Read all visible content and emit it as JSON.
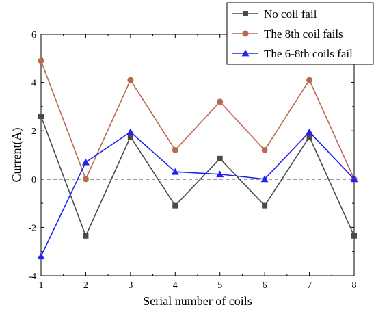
{
  "chart_data": {
    "type": "line",
    "title": "",
    "xlabel": "Serial number of coils",
    "ylabel": "Current(A)",
    "xlim": [
      1,
      8
    ],
    "ylim": [
      -4,
      6
    ],
    "x_ticks": [
      "1",
      "2",
      "3",
      "4",
      "5",
      "6",
      "7",
      "8"
    ],
    "y_ticks": [
      "-4",
      "-2",
      "0",
      "2",
      "4",
      "6"
    ],
    "x": [
      1,
      2,
      3,
      4,
      5,
      6,
      7,
      8
    ],
    "reference_line": {
      "y": 0,
      "style": "dashed",
      "color": "#000000"
    },
    "grid": false,
    "legend_position": "top-right",
    "series": [
      {
        "name": "No coil fail",
        "values": [
          2.6,
          -2.35,
          1.75,
          -1.1,
          0.85,
          -1.1,
          1.75,
          -2.35
        ],
        "color": "#4a4a4a",
        "marker": "square"
      },
      {
        "name": "The 8th coil fails",
        "values": [
          4.9,
          0,
          4.1,
          1.2,
          3.2,
          1.2,
          4.1,
          0
        ],
        "color": "#b86a4e",
        "marker": "circle"
      },
      {
        "name": "The 6-8th coils fail",
        "values": [
          -3.2,
          0.7,
          1.95,
          0.3,
          0.2,
          0,
          1.95,
          0
        ],
        "color": "#2222ee",
        "marker": "triangle"
      }
    ]
  }
}
